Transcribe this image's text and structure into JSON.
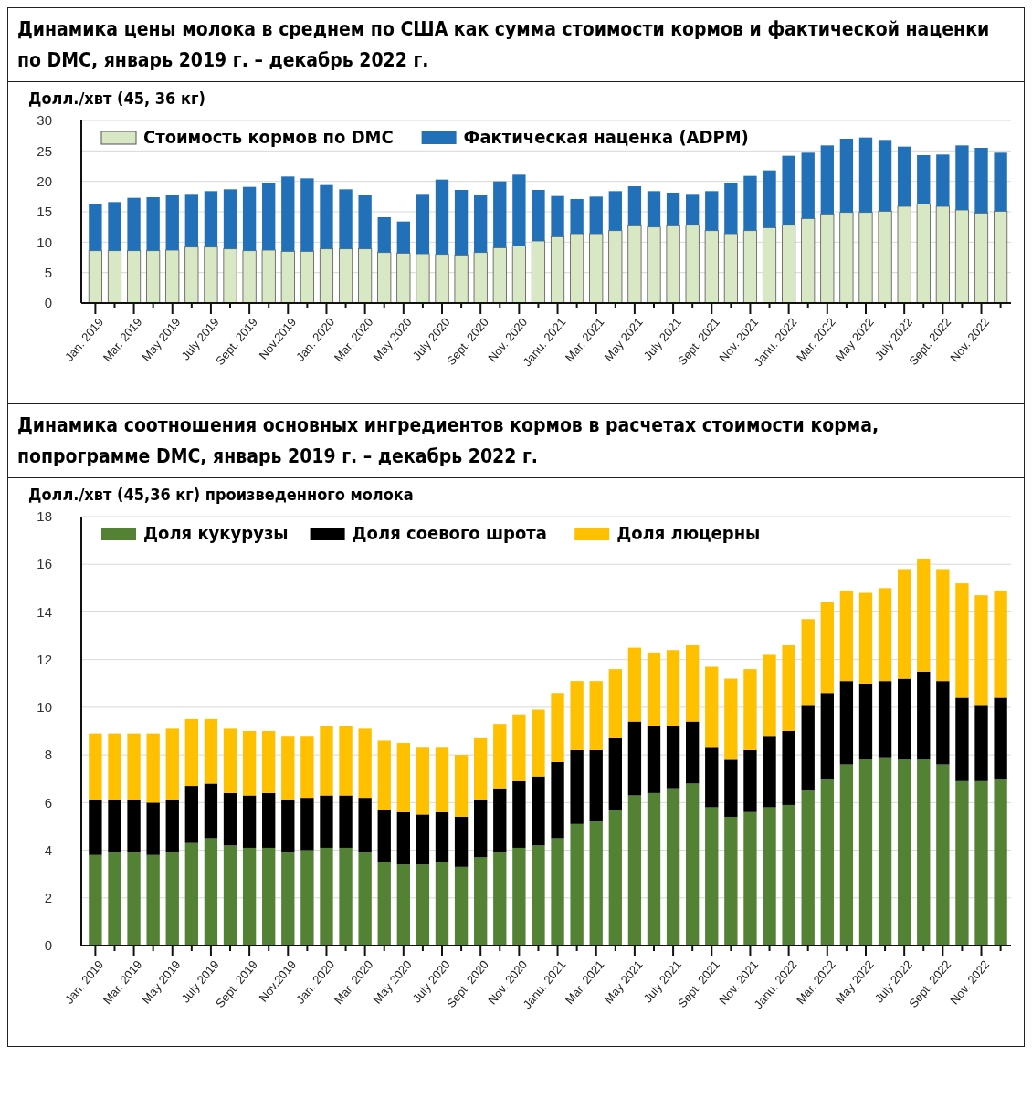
{
  "chart_data": [
    {
      "type": "bar",
      "title": "Динамика цены молока в среднем по США как сумма стоимости кормов и фактической наценки по DMC, январь 2019 г. – декабрь 2022 г.",
      "ylabel": "Долл./хвт (45, 36 кг)",
      "stacked": true,
      "grid": "y",
      "legend": "top left",
      "ylim": [
        0,
        30
      ],
      "yticks": [
        0,
        5,
        10,
        15,
        20,
        25,
        30
      ],
      "categories": [
        "Jan. 2019",
        null,
        "Mar. 2019",
        null,
        "May 2019",
        null,
        "July 2019",
        null,
        "Sept. 2019",
        null,
        "Nov.2019",
        null,
        "Jan. 2020",
        null,
        "Mar. 2020",
        null,
        "May 2020",
        null,
        "July 2020",
        null,
        "Sept. 2020",
        null,
        "Nov. 2020",
        null,
        "Janu. 2021",
        null,
        "Mar. 2021",
        null,
        "May 2021",
        null,
        "July 2021",
        null,
        "Sept. 2021",
        null,
        "Nov. 2021",
        null,
        "Janu. 2022",
        null,
        "Mar. 2022",
        null,
        "May 2022",
        null,
        "July 2022",
        null,
        "Sept. 2022",
        null,
        "Nov. 2022",
        null
      ],
      "series": [
        {
          "name": "Стоимость кормов по DMC",
          "color": "#d9e8c4",
          "values": [
            8.6,
            8.6,
            8.6,
            8.6,
            8.7,
            9.2,
            9.2,
            8.9,
            8.6,
            8.7,
            8.5,
            8.5,
            8.9,
            8.9,
            8.9,
            8.3,
            8.2,
            8.1,
            8.0,
            7.9,
            8.3,
            9.1,
            9.4,
            10.2,
            10.9,
            11.4,
            11.4,
            11.9,
            12.7,
            12.5,
            12.7,
            12.8,
            11.9,
            11.4,
            11.9,
            12.4,
            12.8,
            13.9,
            14.5,
            14.9,
            14.9,
            15.1,
            15.9,
            16.3,
            15.9,
            15.3,
            14.8,
            15.1
          ]
        },
        {
          "name": "Фактическая наценка (ADPM)",
          "color": "#2271b8",
          "values": [
            7.7,
            8.0,
            8.7,
            8.8,
            9.0,
            8.6,
            9.2,
            9.8,
            10.5,
            11.1,
            12.3,
            12.0,
            10.5,
            9.8,
            8.8,
            5.8,
            5.2,
            9.7,
            12.3,
            10.7,
            9.4,
            10.9,
            11.7,
            8.4,
            6.7,
            5.7,
            6.1,
            6.5,
            6.5,
            5.9,
            5.3,
            5.0,
            6.5,
            8.3,
            9.0,
            9.4,
            11.4,
            10.8,
            11.4,
            12.1,
            12.3,
            11.7,
            9.8,
            8.0,
            8.5,
            10.6,
            10.7,
            9.6
          ]
        }
      ]
    },
    {
      "type": "bar",
      "title": "Динамика соотношения основных ингредиентов кормов в расчетах стоимости корма, попрограмме DMC, январь 2019 г. – декабрь 2022 г.",
      "ylabel": "Долл./хвт (45,36 кг) произведенного молока",
      "stacked": true,
      "grid": "y",
      "legend": "top left",
      "ylim": [
        0,
        18
      ],
      "yticks": [
        0,
        2,
        4,
        6,
        8,
        10,
        12,
        14,
        16,
        18
      ],
      "categories": [
        "Jan. 2019",
        null,
        "Mar. 2019",
        null,
        "May 2019",
        null,
        "July 2019",
        null,
        "Sept. 2019",
        null,
        "Nov.2019",
        null,
        "Jan. 2020",
        null,
        "Mar. 2020",
        null,
        "May 2020",
        null,
        "July 2020",
        null,
        "Sept. 2020",
        null,
        "Nov. 2020",
        null,
        "Janu. 2021",
        null,
        "Mar. 2021",
        null,
        "May 2021",
        null,
        "July 2021",
        null,
        "Sept. 2021",
        null,
        "Nov. 2021",
        null,
        "Janu. 2022",
        null,
        "Mar. 2022",
        null,
        "May 2022",
        null,
        "July 2022",
        null,
        "Sept. 2022",
        null,
        "Nov. 2022",
        null
      ],
      "series": [
        {
          "name": "Доля кукурузы",
          "color": "#548235",
          "values": [
            3.8,
            3.9,
            3.9,
            3.8,
            3.9,
            4.3,
            4.5,
            4.2,
            4.1,
            4.1,
            3.9,
            4.0,
            4.1,
            4.1,
            3.9,
            3.5,
            3.4,
            3.4,
            3.5,
            3.3,
            3.7,
            3.9,
            4.1,
            4.2,
            4.5,
            5.1,
            5.2,
            5.7,
            6.3,
            6.4,
            6.6,
            6.8,
            5.8,
            5.4,
            5.6,
            5.8,
            5.9,
            6.5,
            7.0,
            7.6,
            7.8,
            7.9,
            7.8,
            7.8,
            7.6,
            6.9,
            6.9,
            7.0
          ]
        },
        {
          "name": "Доля соевого шрота",
          "color": "#000000",
          "values": [
            2.3,
            2.2,
            2.2,
            2.2,
            2.2,
            2.4,
            2.3,
            2.2,
            2.2,
            2.3,
            2.2,
            2.2,
            2.2,
            2.2,
            2.3,
            2.2,
            2.2,
            2.1,
            2.1,
            2.1,
            2.4,
            2.7,
            2.8,
            2.9,
            3.2,
            3.1,
            3.0,
            3.0,
            3.1,
            2.8,
            2.6,
            2.6,
            2.5,
            2.4,
            2.6,
            3.0,
            3.1,
            3.6,
            3.6,
            3.5,
            3.2,
            3.2,
            3.4,
            3.7,
            3.5,
            3.5,
            3.2,
            3.4
          ]
        },
        {
          "name": "Доля люцерны",
          "color": "#ffc000",
          "values": [
            2.8,
            2.8,
            2.8,
            2.9,
            3.0,
            2.8,
            2.7,
            2.7,
            2.7,
            2.6,
            2.7,
            2.6,
            2.9,
            2.9,
            2.9,
            2.9,
            2.9,
            2.8,
            2.7,
            2.6,
            2.6,
            2.7,
            2.8,
            2.8,
            2.9,
            2.9,
            2.9,
            2.9,
            3.1,
            3.1,
            3.2,
            3.2,
            3.4,
            3.4,
            3.4,
            3.4,
            3.6,
            3.6,
            3.8,
            3.8,
            3.8,
            3.9,
            4.6,
            4.7,
            4.7,
            4.8,
            4.6,
            4.5
          ]
        }
      ]
    }
  ]
}
